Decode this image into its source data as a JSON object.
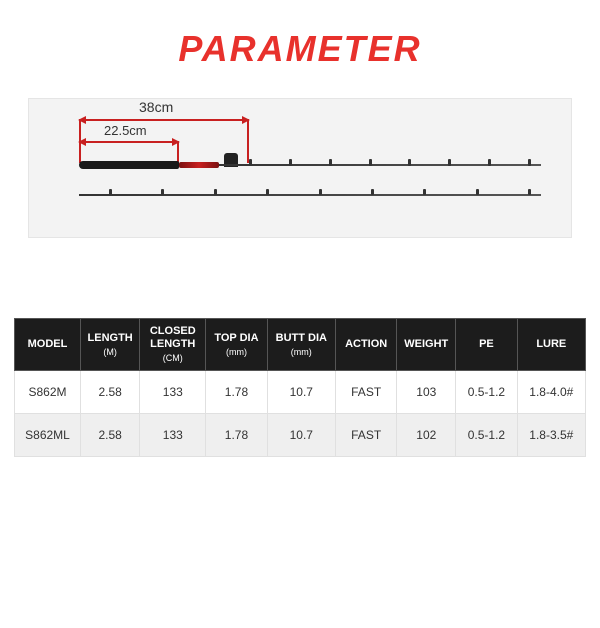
{
  "title": "PARAMETER",
  "diagram": {
    "outer_dim": "38cm",
    "inner_dim": "22.5cm"
  },
  "table": {
    "headers": {
      "model": "MODEL",
      "length": "LENGTH",
      "length_unit": "(M)",
      "closed": "CLOSED LENGTH",
      "closed_unit": "(CM)",
      "top": "TOP DIA",
      "top_unit": "(mm)",
      "butt": "BUTT DIA",
      "butt_unit": "(mm)",
      "action": "ACTION",
      "weight": "WEIGHT",
      "pe": "PE",
      "lure": "LURE"
    },
    "rows": [
      {
        "model": "S862M",
        "length": "2.58",
        "closed": "133",
        "top": "1.78",
        "butt": "10.7",
        "action": "FAST",
        "weight": "103",
        "pe": "0.5-1.2",
        "lure": "1.8-4.0#"
      },
      {
        "model": "S862ML",
        "length": "2.58",
        "closed": "133",
        "top": "1.78",
        "butt": "10.7",
        "action": "FAST",
        "weight": "102",
        "pe": "0.5-1.2",
        "lure": "1.8-3.5#"
      }
    ]
  },
  "colors": {
    "title": "#e8312c",
    "accent": "#c82020",
    "header_bg": "#1c1c1c",
    "row_alt": "#efefef",
    "diagram_bg": "#f3f3f3"
  }
}
